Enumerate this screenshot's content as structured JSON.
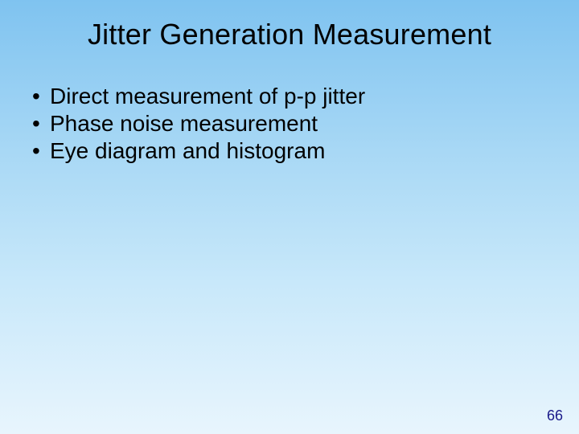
{
  "slide": {
    "title": "Jitter Generation Measurement",
    "bullets": [
      "Direct measurement of p-p jitter",
      "Phase noise measurement",
      "Eye diagram and histogram"
    ],
    "page_number": "66",
    "title_fontsize": 36,
    "body_fontsize": 28,
    "pagenum_fontsize": 18,
    "text_color": "#000000",
    "pagenum_color": "#1a1a8a",
    "background_gradient": [
      "#7fc3f0",
      "#a8d8f5",
      "#c8e8fa",
      "#e8f5fd"
    ],
    "bullet_glyph": "•"
  }
}
